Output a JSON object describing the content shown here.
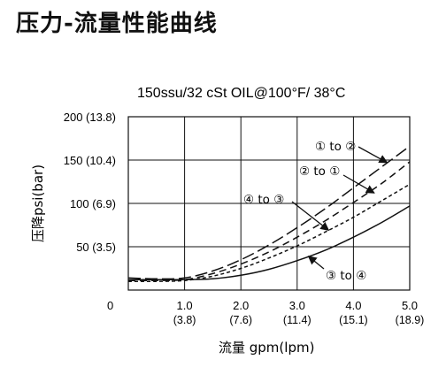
{
  "page_title": "压力-流量性能曲线",
  "chart_data": {
    "type": "line",
    "title": "150ssu/32 cSt OIL@100°F/ 38°C",
    "xlabel": "流量 gpm(lpm)",
    "ylabel": "压降psi(bar)",
    "xlim": [
      0,
      5
    ],
    "ylim": [
      0,
      200
    ],
    "grid": true,
    "x_ticks": [
      {
        "value": 0,
        "label": "0",
        "sub": ""
      },
      {
        "value": 1,
        "label": "1.0",
        "sub": "(3.8)"
      },
      {
        "value": 2,
        "label": "2.0",
        "sub": "(7.6)"
      },
      {
        "value": 3,
        "label": "3.0",
        "sub": "(11.4)"
      },
      {
        "value": 4,
        "label": "4.0",
        "sub": "(15.1)"
      },
      {
        "value": 5,
        "label": "5.0",
        "sub": "(18.9)"
      }
    ],
    "y_ticks": [
      {
        "value": 50,
        "label": "50 (3.5)"
      },
      {
        "value": 100,
        "label": "100 (6.9)"
      },
      {
        "value": 150,
        "label": "150 (10.4)"
      },
      {
        "value": 200,
        "label": "200 (13.8)"
      }
    ],
    "series": [
      {
        "name": "① to ②",
        "dash": "long",
        "x": [
          0,
          0.5,
          1.0,
          1.5,
          2.0,
          2.5,
          3.0,
          3.5,
          4.0,
          4.5,
          5.0
        ],
        "y": [
          14,
          13,
          14,
          22,
          35,
          52,
          72,
          94,
          118,
          142,
          166
        ]
      },
      {
        "name": "② to ①",
        "dash": "medium",
        "x": [
          0,
          0.5,
          1.0,
          1.5,
          2.0,
          2.5,
          3.0,
          3.5,
          4.0,
          4.5,
          5.0
        ],
        "y": [
          11,
          11,
          12,
          19,
          30,
          44,
          61,
          80,
          101,
          123,
          148
        ]
      },
      {
        "name": "④ to ③",
        "dash": "short",
        "x": [
          0,
          0.5,
          1.0,
          1.5,
          2.0,
          2.5,
          3.0,
          3.5,
          4.0,
          4.5,
          5.0
        ],
        "y": [
          10,
          10,
          11,
          16,
          25,
          37,
          51,
          67,
          84,
          103,
          122
        ]
      },
      {
        "name": "③ to ④",
        "dash": "solid",
        "x": [
          0,
          0.5,
          1.0,
          1.5,
          2.0,
          2.5,
          3.0,
          3.5,
          4.0,
          4.5,
          5.0
        ],
        "y": [
          12,
          12,
          12,
          13,
          17,
          24,
          34,
          46,
          61,
          78,
          97
        ]
      }
    ],
    "annotations": [
      {
        "label": "① to ②",
        "series": 0
      },
      {
        "label": "② to ①",
        "series": 1
      },
      {
        "label": "④ to ③",
        "series": 2
      },
      {
        "label": "③ to ④",
        "series": 3
      }
    ]
  }
}
